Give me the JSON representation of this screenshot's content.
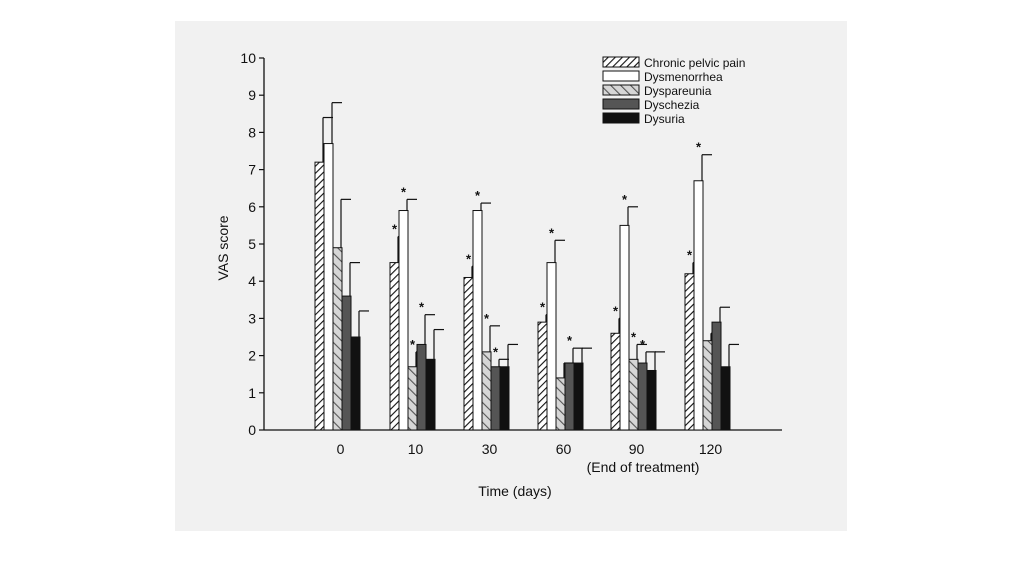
{
  "chart_data": {
    "type": "bar",
    "title": "",
    "xlabel": "Time (days)",
    "ylabel": "VAS score",
    "ylim": [
      0,
      10
    ],
    "yticks": [
      "0",
      "1",
      "2",
      "3",
      "4",
      "5",
      "6",
      "7",
      "8",
      "9",
      "10"
    ],
    "categories": [
      "0",
      "10",
      "30",
      "60",
      "90",
      "120"
    ],
    "category_note": {
      "category": "90",
      "text": "(End of treatment)"
    },
    "grid": false,
    "legend_position": "top-right",
    "series": [
      {
        "name": "Chronic pelvic pain",
        "pattern": "hatch-right",
        "values": [
          7.2,
          4.5,
          4.1,
          2.9,
          2.6,
          4.2
        ],
        "errors": [
          1.2,
          0.7,
          0.3,
          0.2,
          0.4,
          0.3
        ],
        "significant": [
          false,
          true,
          true,
          true,
          true,
          true
        ]
      },
      {
        "name": "Dysmenorrhea",
        "pattern": "white",
        "values": [
          7.7,
          5.9,
          5.9,
          4.5,
          5.5,
          6.7
        ],
        "errors": [
          1.1,
          0.3,
          0.2,
          0.6,
          0.5,
          0.7
        ],
        "significant": [
          false,
          true,
          true,
          true,
          true,
          true
        ]
      },
      {
        "name": "Dyspareunia",
        "pattern": "hatch-left-gray",
        "values": [
          4.9,
          1.7,
          2.1,
          1.4,
          1.9,
          2.4
        ],
        "errors": [
          1.3,
          0.4,
          0.7,
          0.4,
          0.4,
          0.2
        ],
        "significant": [
          false,
          true,
          true,
          false,
          true,
          false
        ]
      },
      {
        "name": "Dyschezia",
        "pattern": "dark-gray",
        "values": [
          3.6,
          2.3,
          1.7,
          1.8,
          1.8,
          2.9
        ],
        "errors": [
          0.9,
          0.8,
          0.2,
          0.4,
          0.3,
          0.4
        ],
        "significant": [
          false,
          true,
          true,
          true,
          true,
          false
        ]
      },
      {
        "name": "Dysuria",
        "pattern": "black",
        "values": [
          2.5,
          1.9,
          1.7,
          1.8,
          1.6,
          1.7
        ],
        "errors": [
          0.7,
          0.8,
          0.6,
          0.4,
          0.5,
          0.6
        ],
        "significant": [
          false,
          false,
          false,
          false,
          false,
          false
        ]
      }
    ],
    "significance_marker": "*",
    "colors": {
      "black": "#111111",
      "dark_gray": "#555555",
      "light_gray": "#c8c8c8",
      "white": "#ffffff",
      "panel": "#f1f1f1"
    }
  }
}
